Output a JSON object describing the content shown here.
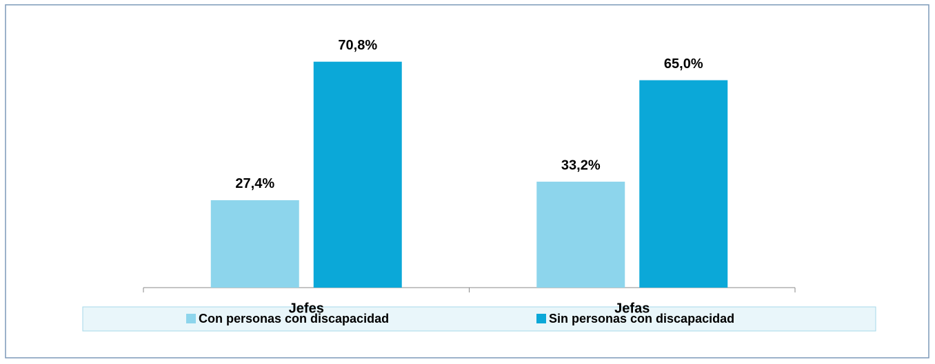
{
  "chart_data": {
    "type": "bar",
    "categories": [
      "Jefes",
      "Jefas"
    ],
    "series": [
      {
        "name": "Con personas con discapacidad",
        "color": "#8dd5ec",
        "values": [
          27.4,
          33.2
        ],
        "value_labels": [
          "27,4%",
          "33,2%"
        ]
      },
      {
        "name": "Sin personas con discapacidad",
        "color": "#0ba8d8",
        "values": [
          70.8,
          65.0
        ],
        "value_labels": [
          "70,8%",
          "65,0%"
        ]
      }
    ],
    "ylim": [
      0,
      80
    ],
    "legend": "bottom"
  }
}
